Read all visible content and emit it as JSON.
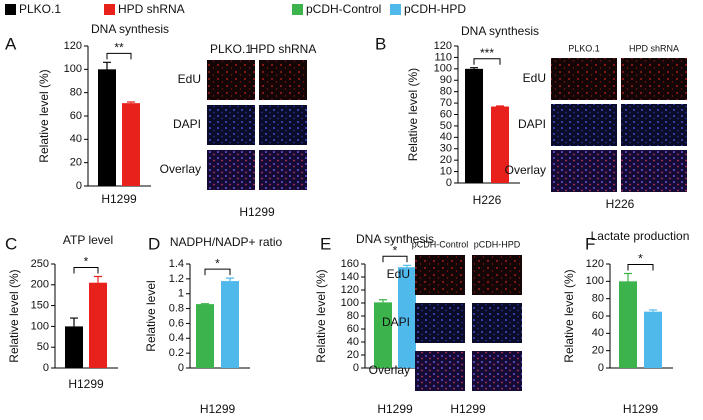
{
  "legend": [
    {
      "name": "PLKO.1",
      "color": "#000000"
    },
    {
      "name": "HPD shRNA",
      "color": "#e8211c"
    },
    {
      "name": "pCDH-Control",
      "color": "#3cb44b"
    },
    {
      "name": "pCDH-HPD",
      "color": "#4fb9ec"
    }
  ],
  "chart_data": [
    {
      "panel": "A",
      "type": "bar",
      "title": "DNA synthesis",
      "y_label": "Relative level (%)",
      "categories": [
        "H1299"
      ],
      "series": [
        {
          "color": "#000000",
          "values": [
            100
          ],
          "errors": [
            6
          ]
        },
        {
          "color": "#e8211c",
          "values": [
            71
          ],
          "errors": [
            1
          ]
        }
      ],
      "ylim": [
        0,
        120
      ],
      "yticks": [
        0,
        20,
        40,
        60,
        80,
        100,
        120
      ],
      "significance": "**",
      "images": {
        "columns": [
          "PLKO.1",
          "HPD shRNA"
        ],
        "rows": [
          "EdU",
          "DAPI",
          "Overlay"
        ],
        "caption": "H1299"
      }
    },
    {
      "panel": "B",
      "type": "bar",
      "title": "DNA synthesis",
      "y_label": "Relative level (%)",
      "categories": [
        "H226"
      ],
      "series": [
        {
          "color": "#000000",
          "values": [
            100
          ],
          "errors": [
            1
          ]
        },
        {
          "color": "#e8211c",
          "values": [
            67
          ],
          "errors": [
            0.5
          ]
        }
      ],
      "ylim": [
        0,
        120
      ],
      "yticks": [
        0,
        10,
        20,
        30,
        40,
        50,
        60,
        70,
        80,
        90,
        100,
        110,
        120
      ],
      "significance": "***",
      "images": {
        "columns": [
          "PLKO.1",
          "HPD shRNA"
        ],
        "rows": [
          "EdU",
          "DAPI",
          "Overlay"
        ],
        "caption": "H226"
      }
    },
    {
      "panel": "C",
      "type": "bar",
      "title": "ATP level",
      "y_label": "Relative level (%)",
      "categories": [
        "H1299"
      ],
      "series": [
        {
          "color": "#000000",
          "values": [
            100
          ],
          "errors": [
            20
          ]
        },
        {
          "color": "#e8211c",
          "values": [
            205
          ],
          "errors": [
            15
          ]
        }
      ],
      "ylim": [
        0,
        250
      ],
      "yticks": [
        0,
        50,
        100,
        150,
        200,
        250
      ],
      "significance": "*"
    },
    {
      "panel": "D",
      "type": "bar",
      "title": "NADPH/NADP+ ratio",
      "y_label": "Relative level",
      "categories": [
        "H1299"
      ],
      "series": [
        {
          "color": "#3cb44b",
          "values": [
            0.86
          ],
          "errors": [
            0.005
          ]
        },
        {
          "color": "#4fb9ec",
          "values": [
            1.17
          ],
          "errors": [
            0.04
          ]
        }
      ],
      "ylim": [
        0,
        1.4
      ],
      "yticks": [
        0,
        0.2,
        0.4,
        0.6,
        0.8,
        1,
        1.2,
        1.4
      ],
      "significance": "*"
    },
    {
      "panel": "E",
      "type": "bar",
      "title": "DNA synthesis",
      "y_label": "Relative level (%)",
      "categories": [
        "H1299"
      ],
      "series": [
        {
          "color": "#3cb44b",
          "values": [
            101
          ],
          "errors": [
            4
          ]
        },
        {
          "color": "#4fb9ec",
          "values": [
            155
          ],
          "errors": [
            3
          ]
        }
      ],
      "ylim": [
        0,
        160
      ],
      "yticks": [
        0,
        20,
        40,
        60,
        80,
        100,
        120,
        140,
        160
      ],
      "significance": "*",
      "images": {
        "columns": [
          "pCDH-Control",
          "pCDH-HPD"
        ],
        "rows": [
          "EdU",
          "DAPI",
          "Overlay"
        ],
        "caption": "H1299"
      }
    },
    {
      "panel": "F",
      "type": "bar",
      "title": "Lactate production",
      "y_label": "Relative level (%)",
      "categories": [
        "H1299"
      ],
      "series": [
        {
          "color": "#3cb44b",
          "values": [
            100
          ],
          "errors": [
            9
          ]
        },
        {
          "color": "#4fb9ec",
          "values": [
            65
          ],
          "errors": [
            2
          ]
        }
      ],
      "ylim": [
        0,
        120
      ],
      "yticks": [
        0,
        20,
        40,
        60,
        80,
        100,
        120
      ],
      "significance": "*"
    }
  ]
}
